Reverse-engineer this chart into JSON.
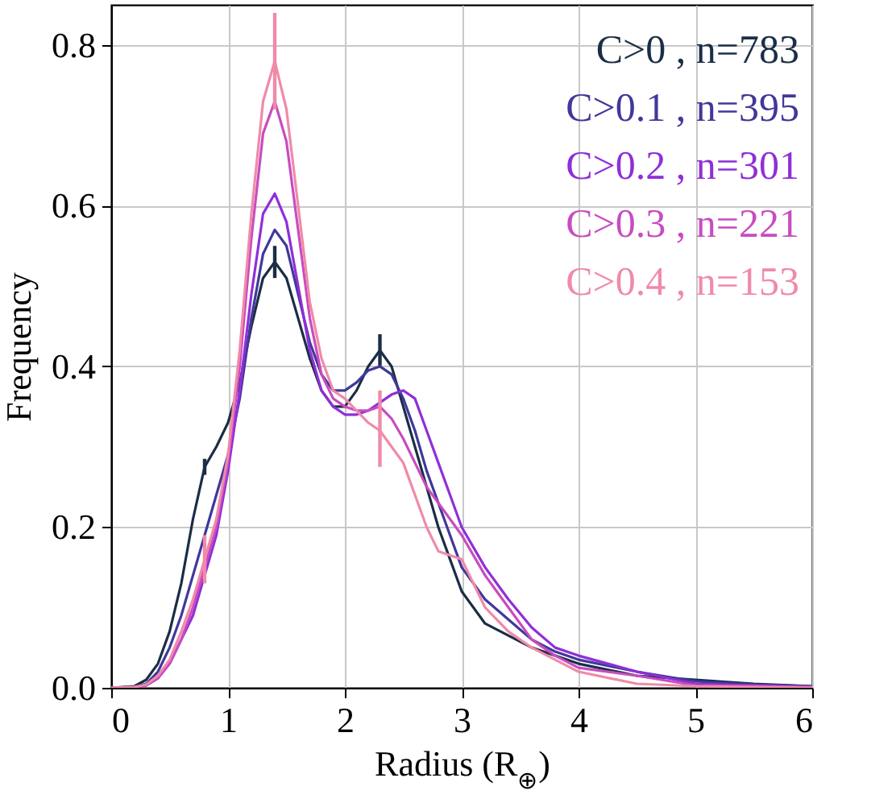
{
  "chart_data": {
    "type": "line",
    "xlabel": "Radius (R$_{⊕}$)",
    "ylabel": "Frequency",
    "x": [
      0,
      0.2,
      0.3,
      0.4,
      0.5,
      0.6,
      0.7,
      0.8,
      0.9,
      1.0,
      1.1,
      1.2,
      1.3,
      1.4,
      1.5,
      1.6,
      1.7,
      1.8,
      1.9,
      2.0,
      2.1,
      2.2,
      2.3,
      2.4,
      2.5,
      2.6,
      2.7,
      2.8,
      2.9,
      3.0,
      3.2,
      3.4,
      3.6,
      3.8,
      4.0,
      4.5,
      5.0,
      5.5,
      6.0
    ],
    "series": [
      {
        "name": "C>0 , n=783",
        "color": "#1a2e45",
        "values": [
          0,
          0.002,
          0.01,
          0.03,
          0.07,
          0.13,
          0.21,
          0.275,
          0.3,
          0.33,
          0.38,
          0.45,
          0.51,
          0.53,
          0.51,
          0.46,
          0.41,
          0.37,
          0.35,
          0.35,
          0.37,
          0.4,
          0.42,
          0.4,
          0.35,
          0.3,
          0.25,
          0.2,
          0.16,
          0.12,
          0.08,
          0.065,
          0.05,
          0.04,
          0.03,
          0.015,
          0.01,
          0.005,
          0.002
        ],
        "errors": [
          null,
          null,
          null,
          null,
          null,
          null,
          null,
          0.01,
          null,
          null,
          null,
          null,
          null,
          0.02,
          null,
          null,
          null,
          null,
          null,
          null,
          null,
          null,
          0.02,
          null,
          null,
          null,
          null,
          null,
          null,
          null,
          null,
          null,
          null,
          null,
          null,
          null,
          null,
          null,
          null
        ]
      },
      {
        "name": "C>0.1 , n=395",
        "color": "#40389a",
        "values": [
          0,
          0.001,
          0.005,
          0.02,
          0.05,
          0.09,
          0.14,
          0.19,
          0.24,
          0.29,
          0.36,
          0.46,
          0.54,
          0.57,
          0.55,
          0.49,
          0.43,
          0.39,
          0.37,
          0.37,
          0.38,
          0.395,
          0.4,
          0.39,
          0.36,
          0.32,
          0.27,
          0.23,
          0.19,
          0.15,
          0.11,
          0.085,
          0.06,
          0.045,
          0.035,
          0.02,
          0.008,
          0.004,
          0.002
        ]
      },
      {
        "name": "C>0.2 , n=301",
        "color": "#8f2fd8",
        "values": [
          0,
          0.001,
          0.003,
          0.012,
          0.03,
          0.06,
          0.09,
          0.14,
          0.19,
          0.27,
          0.37,
          0.49,
          0.59,
          0.615,
          0.58,
          0.5,
          0.42,
          0.37,
          0.35,
          0.34,
          0.34,
          0.345,
          0.355,
          0.365,
          0.37,
          0.36,
          0.32,
          0.28,
          0.24,
          0.2,
          0.15,
          0.11,
          0.075,
          0.05,
          0.04,
          0.02,
          0.005,
          0.003,
          0.001
        ]
      },
      {
        "name": "C>0.3 , n=221",
        "color": "#c84cc0",
        "values": [
          0,
          0.001,
          0.003,
          0.012,
          0.03,
          0.06,
          0.1,
          0.15,
          0.2,
          0.28,
          0.4,
          0.56,
          0.69,
          0.73,
          0.68,
          0.57,
          0.46,
          0.39,
          0.36,
          0.35,
          0.345,
          0.345,
          0.35,
          0.335,
          0.31,
          0.28,
          0.25,
          0.23,
          0.21,
          0.19,
          0.14,
          0.1,
          0.06,
          0.04,
          0.025,
          0.015,
          0.003,
          0.002,
          0.001
        ]
      },
      {
        "name": "C>0.4 , n=153",
        "color": "#f08aa8",
        "values": [
          0,
          0.001,
          0.004,
          0.015,
          0.035,
          0.07,
          0.11,
          0.16,
          0.21,
          0.29,
          0.42,
          0.59,
          0.73,
          0.78,
          0.72,
          0.6,
          0.48,
          0.41,
          0.37,
          0.36,
          0.345,
          0.33,
          0.32,
          0.3,
          0.28,
          0.24,
          0.2,
          0.17,
          0.165,
          0.16,
          0.1,
          0.07,
          0.05,
          0.035,
          0.02,
          0.005,
          0.002,
          0.001,
          0
        ],
        "errors": [
          null,
          null,
          null,
          null,
          null,
          null,
          null,
          0.03,
          null,
          null,
          null,
          null,
          null,
          [
            0.72,
            0.84
          ],
          null,
          null,
          null,
          null,
          null,
          null,
          null,
          null,
          [
            0.275,
            0.37
          ],
          null,
          null,
          null,
          null,
          null,
          null,
          null,
          null,
          null,
          null,
          null,
          null,
          null,
          null,
          null,
          null
        ]
      }
    ],
    "xlim": [
      0,
      6
    ],
    "ylim": [
      0,
      0.85
    ],
    "xticks": [
      0,
      1,
      2,
      3,
      4,
      5,
      6
    ],
    "yticks": [
      {
        "value": 0,
        "label": "0.0"
      },
      0.2,
      0.4,
      0.6,
      0.8
    ],
    "grid": true,
    "legend": "top right",
    "line_style": "solid"
  }
}
